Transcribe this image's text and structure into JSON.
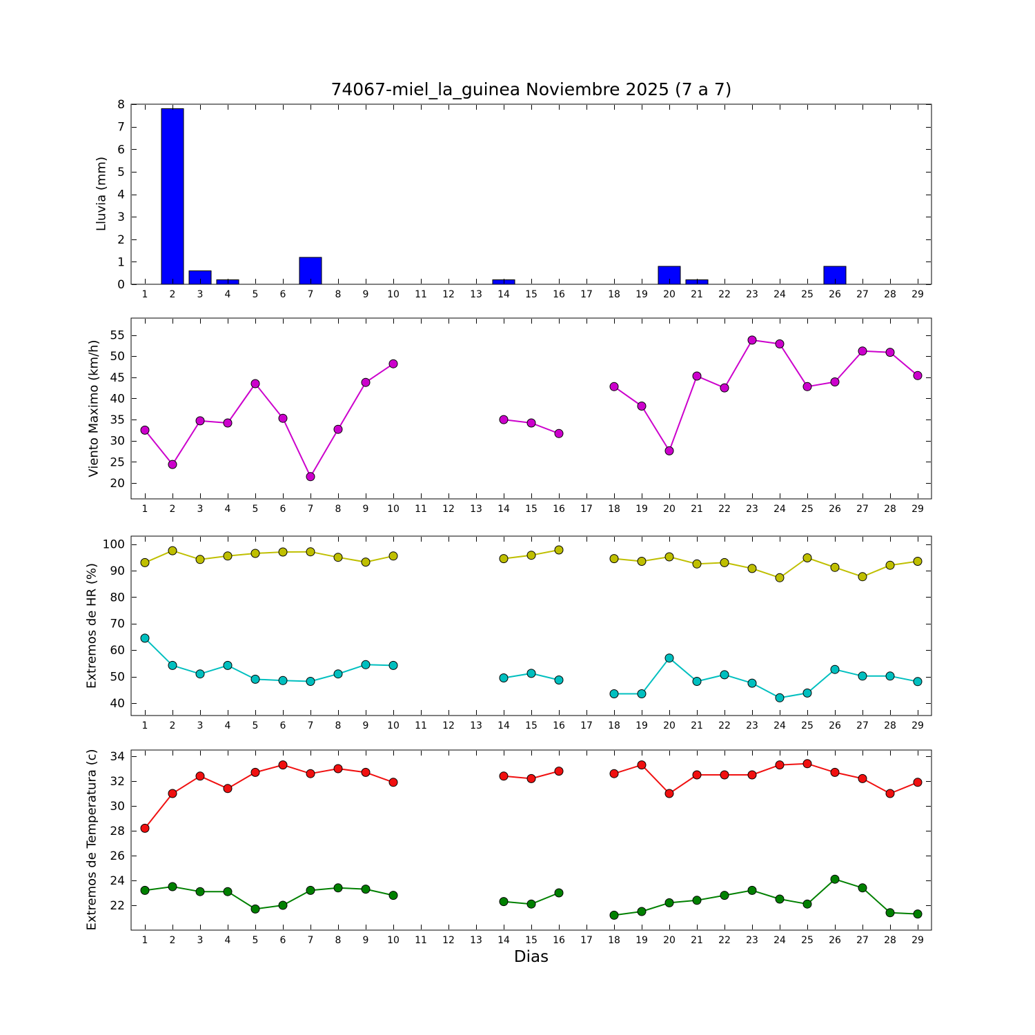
{
  "title": "74067-miel_la_guinea Noviembre 2025  (7 a 7)",
  "xlabel": "Dias",
  "xlim": [
    0.5,
    29.5
  ],
  "xticks": [
    1,
    2,
    3,
    4,
    5,
    6,
    7,
    8,
    9,
    10,
    11,
    12,
    13,
    14,
    15,
    16,
    17,
    18,
    19,
    20,
    21,
    22,
    23,
    24,
    25,
    26,
    27,
    28,
    29
  ],
  "chart_data": [
    {
      "type": "bar",
      "ylabel": "Lluvia (mm)",
      "ylim": [
        0,
        8
      ],
      "yticks": [
        0,
        1,
        2,
        3,
        4,
        5,
        6,
        7,
        8
      ],
      "color": "#0000FF",
      "categories": [
        1,
        2,
        3,
        4,
        5,
        6,
        7,
        8,
        9,
        10,
        11,
        12,
        13,
        14,
        15,
        16,
        17,
        18,
        19,
        20,
        21,
        22,
        23,
        24,
        25,
        26,
        27,
        28,
        29
      ],
      "values": [
        0,
        7.8,
        0.6,
        0.2,
        0,
        0,
        1.2,
        0,
        0,
        0,
        0,
        0,
        0,
        0.2,
        0,
        0,
        0,
        0,
        0,
        0.8,
        0.2,
        0,
        0,
        0,
        0,
        0.8,
        0,
        0,
        0
      ]
    },
    {
      "type": "line",
      "ylabel": "Viento Maximo (km/h)",
      "ylim": [
        16.25,
        59.0
      ],
      "yticks": [
        20,
        25,
        30,
        35,
        40,
        45,
        50,
        55
      ],
      "series": [
        {
          "name": "viento_maximo",
          "color": "#CC00CC",
          "x": [
            1,
            2,
            3,
            4,
            5,
            6,
            7,
            8,
            9,
            10,
            14,
            15,
            16,
            18,
            19,
            20,
            21,
            22,
            23,
            24,
            25,
            26,
            27,
            28,
            29
          ],
          "values": [
            32.5,
            24.4,
            34.7,
            34.2,
            43.5,
            35.3,
            21.5,
            32.7,
            43.8,
            48.2,
            35.0,
            34.2,
            31.7,
            42.8,
            38.2,
            27.6,
            45.3,
            42.5,
            53.8,
            52.9,
            42.8,
            43.9,
            51.2,
            50.9,
            45.4
          ]
        }
      ]
    },
    {
      "type": "line",
      "ylabel": "Extremos de HR (%)",
      "ylim": [
        35.3,
        103.0
      ],
      "yticks": [
        40,
        50,
        60,
        70,
        80,
        90,
        100
      ],
      "series": [
        {
          "name": "hr_maxima",
          "color": "#BFBF00",
          "x": [
            1,
            2,
            3,
            4,
            5,
            6,
            7,
            8,
            9,
            10,
            14,
            15,
            16,
            18,
            19,
            20,
            21,
            22,
            23,
            24,
            25,
            26,
            27,
            28,
            29
          ],
          "values": [
            93.0,
            97.5,
            94.2,
            95.5,
            96.5,
            97.0,
            97.1,
            95.0,
            93.2,
            95.5,
            94.5,
            95.8,
            97.8,
            94.5,
            93.5,
            95.2,
            92.5,
            93.0,
            90.8,
            87.3,
            94.8,
            91.2,
            87.7,
            92.0,
            93.5
          ]
        },
        {
          "name": "hr_minima",
          "color": "#00BFBF",
          "x": [
            1,
            2,
            3,
            4,
            5,
            6,
            7,
            8,
            9,
            10,
            14,
            15,
            16,
            18,
            19,
            20,
            21,
            22,
            23,
            24,
            25,
            26,
            27,
            28,
            29
          ],
          "values": [
            64.5,
            54.2,
            51.0,
            54.2,
            49.0,
            48.5,
            48.2,
            51.0,
            54.5,
            54.2,
            49.5,
            51.2,
            48.7,
            43.5,
            43.5,
            57.0,
            48.2,
            50.7,
            47.5,
            42.0,
            43.8,
            52.7,
            50.2,
            50.2,
            48.1
          ]
        }
      ]
    },
    {
      "type": "line",
      "ylabel": "Extremos de Temperatura (c)",
      "ylim": [
        20.0,
        34.5
      ],
      "yticks": [
        22,
        24,
        26,
        28,
        30,
        32,
        34
      ],
      "series": [
        {
          "name": "temperatura_maxima",
          "color": "#F01010",
          "x": [
            1,
            2,
            3,
            4,
            5,
            6,
            7,
            8,
            9,
            10,
            14,
            15,
            16,
            18,
            19,
            20,
            21,
            22,
            23,
            24,
            25,
            26,
            27,
            28,
            29
          ],
          "values": [
            28.2,
            31.0,
            32.4,
            31.4,
            32.7,
            33.3,
            32.6,
            33.0,
            32.7,
            31.9,
            32.4,
            32.2,
            32.8,
            32.6,
            33.3,
            31.0,
            32.5,
            32.5,
            32.5,
            33.3,
            33.4,
            32.7,
            32.2,
            31.0,
            31.9
          ]
        },
        {
          "name": "temperatura_minima",
          "color": "#008000",
          "x": [
            1,
            2,
            3,
            4,
            5,
            6,
            7,
            8,
            9,
            10,
            14,
            15,
            16,
            18,
            19,
            20,
            21,
            22,
            23,
            24,
            25,
            26,
            27,
            28,
            29
          ],
          "values": [
            23.2,
            23.5,
            23.1,
            23.1,
            21.7,
            22.0,
            23.2,
            23.4,
            23.3,
            22.8,
            22.3,
            22.1,
            23.0,
            21.2,
            21.5,
            22.2,
            22.4,
            22.8,
            23.2,
            22.5,
            22.1,
            24.1,
            23.4,
            21.4,
            21.3
          ]
        }
      ]
    }
  ]
}
